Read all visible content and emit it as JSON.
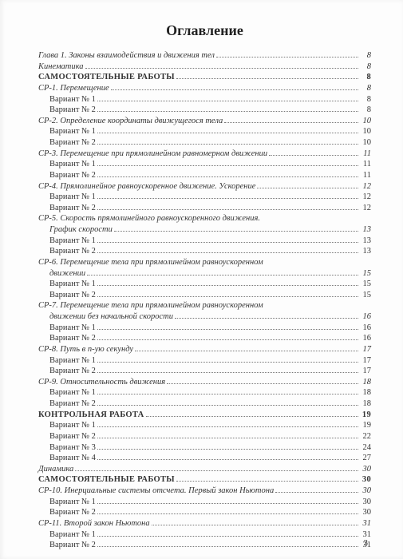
{
  "title": "Оглавление",
  "footer_page": "3",
  "entries": [
    {
      "text": "Глава 1. Законы взаимодействия и движения тел",
      "page": "8",
      "cls": "italic"
    },
    {
      "text": "Кинематика",
      "page": "8",
      "cls": "italic"
    },
    {
      "text": "САМОСТОЯТЕЛЬНЫЕ РАБОТЫ",
      "page": "8",
      "cls": "section"
    },
    {
      "text": "СР-1. Перемещение",
      "page": "8",
      "cls": "italic"
    },
    {
      "text": "Вариант № 1",
      "page": "8",
      "cls": "ind1"
    },
    {
      "text": "Вариант № 2",
      "page": "8",
      "cls": "ind1"
    },
    {
      "text": "СР-2. Определение координаты движущегося тела",
      "page": "10",
      "cls": "italic"
    },
    {
      "text": "Вариант № 1",
      "page": "10",
      "cls": "ind1"
    },
    {
      "text": "Вариант № 2",
      "page": "10",
      "cls": "ind1"
    },
    {
      "text": "СР-3. Перемещение при прямолинейном равномерном движении",
      "page": "11",
      "cls": "italic"
    },
    {
      "text": "Вариант № 1",
      "page": "11",
      "cls": "ind1"
    },
    {
      "text": "Вариант № 2",
      "page": "11",
      "cls": "ind1"
    },
    {
      "text": "СР-4. Прямолинейное равноускоренное движение. Ускорение",
      "page": "12",
      "cls": "italic"
    },
    {
      "text": "Вариант № 1",
      "page": "12",
      "cls": "ind1"
    },
    {
      "text": "Вариант № 2",
      "page": "12",
      "cls": "ind1"
    },
    {
      "text": "СР-5. Скорость прямолинейного равноускоренного движения.",
      "page": "",
      "cls": "italic",
      "nodots": true
    },
    {
      "text": "График скорости",
      "page": "13",
      "cls": "italic ind1"
    },
    {
      "text": "Вариант № 1",
      "page": "13",
      "cls": "ind1"
    },
    {
      "text": "Вариант № 2",
      "page": "13",
      "cls": "ind1"
    },
    {
      "text": "СР-6. Перемещение тела при прямолинейном равноускоренном",
      "page": "",
      "cls": "italic",
      "nodots": true
    },
    {
      "text": "движении",
      "page": "15",
      "cls": "italic ind1"
    },
    {
      "text": "Вариант № 1",
      "page": "15",
      "cls": "ind1"
    },
    {
      "text": "Вариант № 2",
      "page": "15",
      "cls": "ind1"
    },
    {
      "text": "СР-7. Перемещение тела при прямолинейном равноускоренном",
      "page": "",
      "cls": "italic",
      "nodots": true
    },
    {
      "text": "движении без начальной скорости",
      "page": "16",
      "cls": "italic ind1"
    },
    {
      "text": "Вариант № 1",
      "page": "16",
      "cls": "ind1"
    },
    {
      "text": "Вариант № 2",
      "page": "16",
      "cls": "ind1"
    },
    {
      "text": "СР-8. Путь в n-ую секунду",
      "page": "17",
      "cls": "italic"
    },
    {
      "text": "Вариант № 1",
      "page": "17",
      "cls": "ind1"
    },
    {
      "text": "Вариант № 2",
      "page": "17",
      "cls": "ind1"
    },
    {
      "text": "СР-9. Относительность движения",
      "page": "18",
      "cls": "italic"
    },
    {
      "text": "Вариант № 1",
      "page": "18",
      "cls": "ind1"
    },
    {
      "text": "Вариант № 2",
      "page": "18",
      "cls": "ind1"
    },
    {
      "text": "КОНТРОЛЬНАЯ РАБОТА",
      "page": "19",
      "cls": "section"
    },
    {
      "text": "Вариант № 1",
      "page": "19",
      "cls": "ind1"
    },
    {
      "text": "Вариант № 2",
      "page": "22",
      "cls": "ind1"
    },
    {
      "text": "Вариант № 3",
      "page": "24",
      "cls": "ind1"
    },
    {
      "text": "Вариант № 4",
      "page": "27",
      "cls": "ind1"
    },
    {
      "text": "Динамика",
      "page": "30",
      "cls": "italic"
    },
    {
      "text": "САМОСТОЯТЕЛЬНЫЕ РАБОТЫ",
      "page": "30",
      "cls": "section"
    },
    {
      "text": "СР-10. Инерциальные системы отсчета. Первый закон Ньютона",
      "page": "30",
      "cls": "italic"
    },
    {
      "text": "Вариант № 1",
      "page": "30",
      "cls": "ind1"
    },
    {
      "text": "Вариант № 2",
      "page": "30",
      "cls": "ind1"
    },
    {
      "text": "СР-11. Второй закон Ньютона",
      "page": "31",
      "cls": "italic"
    },
    {
      "text": "Вариант № 1",
      "page": "31",
      "cls": "ind1"
    },
    {
      "text": "Вариант № 2",
      "page": "31",
      "cls": "ind1"
    }
  ]
}
